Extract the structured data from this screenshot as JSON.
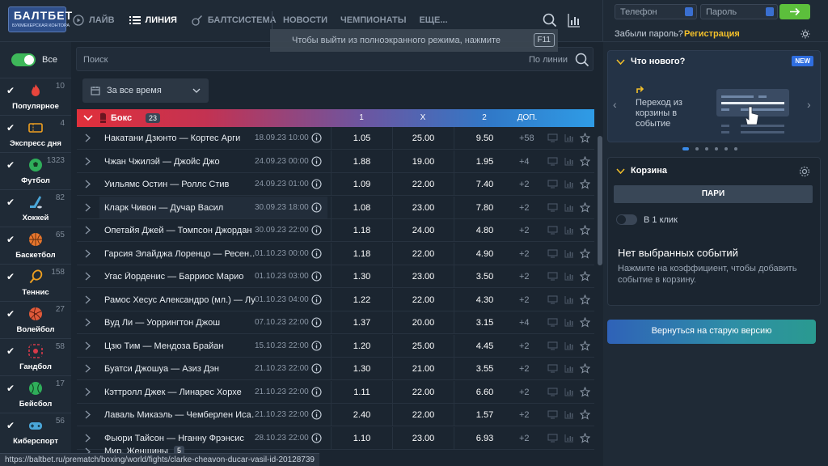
{
  "brand": {
    "logo": "БАЛТБЕТ",
    "logo_sub": "БУКМЕКЕРСКАЯ КОНТОРА"
  },
  "nav": {
    "primary": [
      {
        "label": "ЛАЙВ",
        "icon": "play-icon"
      },
      {
        "label": "ЛИНИЯ",
        "icon": "list-icon"
      },
      {
        "label": "БАЛТСИСТЕМА",
        "icon": "guitar-icon"
      }
    ],
    "secondary": [
      "НОВОСТИ",
      "ЧЕМПИОНАТЫ",
      "ЕЩЕ..."
    ]
  },
  "login": {
    "phone_placeholder": "Телефон",
    "password_placeholder": "Пароль",
    "forgot": "Забыли пароль?",
    "register": "Регистрация"
  },
  "fullscreen_tip": {
    "text": "Чтобы выйти из полноэкранного режима, нажмите",
    "key": "F11"
  },
  "sidebar": {
    "all_label": "Все",
    "sports": [
      {
        "label": "Популярное",
        "count": "10",
        "icon": "fire-icon",
        "color": "#e8453c"
      },
      {
        "label": "Экспресс дня",
        "count": "4",
        "icon": "ticket-icon",
        "color": "#f0a020"
      },
      {
        "label": "Футбол",
        "count": "1323",
        "icon": "football-icon",
        "color": "#2fae5a"
      },
      {
        "label": "Хоккей",
        "count": "82",
        "icon": "hockey-icon",
        "color": "#4aa6d8"
      },
      {
        "label": "Баскетбол",
        "count": "65",
        "icon": "basketball-icon",
        "color": "#e8772e"
      },
      {
        "label": "Теннис",
        "count": "158",
        "icon": "tennis-icon",
        "color": "#f0a020"
      },
      {
        "label": "Волейбол",
        "count": "27",
        "icon": "volleyball-icon",
        "color": "#e05a3a"
      },
      {
        "label": "Гандбол",
        "count": "58",
        "icon": "handball-icon",
        "color": "#d83a4a"
      },
      {
        "label": "Бейсбол",
        "count": "17",
        "icon": "baseball-icon",
        "color": "#2fae5a"
      },
      {
        "label": "Киберспорт",
        "count": "56",
        "icon": "esports-icon",
        "color": "#4aa6d8"
      }
    ]
  },
  "main": {
    "search_placeholder": "Поиск",
    "search_scope": "По линии",
    "period": "За все время",
    "table_header": {
      "sport": "Бокс",
      "count": "23",
      "col1": "1",
      "colx": "X",
      "col2": "2",
      "colmore": "ДОП."
    },
    "events": [
      {
        "name": "Накатани Дзюнто — Кортес Арги",
        "date": "18.09.23 10:00",
        "o1": "1.05",
        "ox": "25.00",
        "o2": "9.50",
        "more": "+58"
      },
      {
        "name": "Чжан Чжилэй — Джойс Джо",
        "date": "24.09.23 00:00",
        "o1": "1.88",
        "ox": "19.00",
        "o2": "1.95",
        "more": "+4"
      },
      {
        "name": "Уильямс Остин — Роллс Стив",
        "date": "24.09.23 01:00",
        "o1": "1.09",
        "ox": "22.00",
        "o2": "7.40",
        "more": "+2"
      },
      {
        "name": "Кларк Чивон — Дучар Васил",
        "date": "30.09.23 18:00",
        "o1": "1.08",
        "ox": "23.00",
        "o2": "7.80",
        "more": "+2"
      },
      {
        "name": "Опетайя Джей — Томпсон Джордан",
        "date": "30.09.23 22:00",
        "o1": "1.18",
        "ox": "24.00",
        "o2": "4.80",
        "more": "+2"
      },
      {
        "name": "Гарсия Элайджа Лоренцо — Ресен…",
        "date": "01.10.23 00:00",
        "o1": "1.18",
        "ox": "22.00",
        "o2": "4.90",
        "more": "+2"
      },
      {
        "name": "Угас Йорденис — Барриос Марио",
        "date": "01.10.23 03:00",
        "o1": "1.30",
        "ox": "23.00",
        "o2": "3.50",
        "more": "+2"
      },
      {
        "name": "Рамос Хесус Александро (мл.) — Лу…",
        "date": "01.10.23 04:00",
        "o1": "1.22",
        "ox": "22.00",
        "o2": "4.30",
        "more": "+2"
      },
      {
        "name": "Вуд Ли — Уоррингтон Джош",
        "date": "07.10.23 22:00",
        "o1": "1.37",
        "ox": "20.00",
        "o2": "3.15",
        "more": "+4"
      },
      {
        "name": "Цзю Тим — Мендоза Брайан",
        "date": "15.10.23 22:00",
        "o1": "1.20",
        "ox": "25.00",
        "o2": "4.45",
        "more": "+2"
      },
      {
        "name": "Буатси Джошуа — Азиз Дэн",
        "date": "21.10.23 22:00",
        "o1": "1.30",
        "ox": "21.00",
        "o2": "3.55",
        "more": "+2"
      },
      {
        "name": "Кэттролл Джек — Линарес Хорхе",
        "date": "21.10.23 22:00",
        "o1": "1.11",
        "ox": "22.00",
        "o2": "6.60",
        "more": "+2"
      },
      {
        "name": "Лаваль Микаэль — Чемберлен Иса…",
        "date": "21.10.23 22:00",
        "o1": "2.40",
        "ox": "22.00",
        "o2": "1.57",
        "more": "+2"
      },
      {
        "name": "Фьюри Тайсон — Нганну Фрэнсис",
        "date": "28.10.23 22:00",
        "o1": "1.10",
        "ox": "23.00",
        "o2": "6.93",
        "more": "+2"
      }
    ],
    "group": {
      "name": "Мир. Женщины",
      "count": "5"
    }
  },
  "status_url": "https://baltbet.ru/prematch/boxing/world/fights/clarke-cheavon-ducar-vasil-id-20128739",
  "right": {
    "news_title": "Что нового?",
    "news_badge": "NEW",
    "news_text": "Переход из корзины в событие",
    "cart_title": "Корзина",
    "cart_tab": "ПАРИ",
    "one_click": "В 1 клик",
    "empty_title": "Нет выбранных событий",
    "empty_text": "Нажмите на коэффициент, чтобы добавить событие в корзину.",
    "old_version": "Вернуться на старую версию"
  }
}
